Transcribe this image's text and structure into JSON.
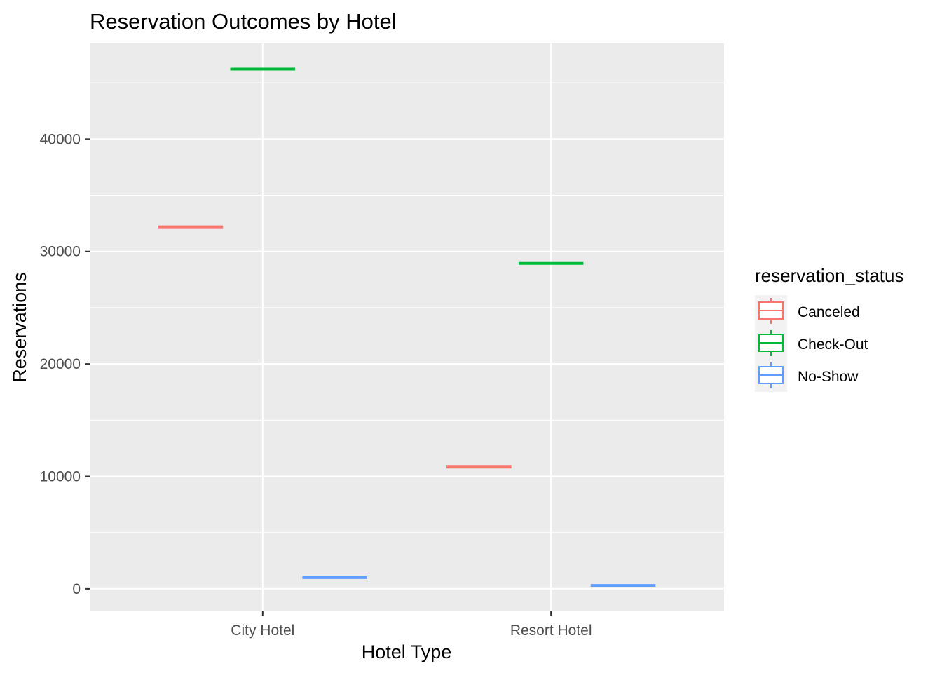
{
  "chart_data": {
    "type": "boxplot",
    "title": "Reservation Outcomes by Hotel",
    "xlabel": "Hotel Type",
    "ylabel": "Reservations",
    "categories": [
      "City Hotel",
      "Resort Hotel"
    ],
    "ylim": [
      -2000,
      48500
    ],
    "y_ticks": [
      0,
      10000,
      20000,
      30000,
      40000
    ],
    "y_tick_labels": [
      "0",
      "10000",
      "20000",
      "30000",
      "40000"
    ],
    "grid": true,
    "legend": {
      "title": "reservation_status",
      "position": "right"
    },
    "series": [
      {
        "name": "Canceled",
        "color": "#F8766D",
        "values": [
          32186,
          10831
        ]
      },
      {
        "name": "Check-Out",
        "color": "#00BA38",
        "values": [
          46228,
          28938
        ]
      },
      {
        "name": "No-Show",
        "color": "#619CFF",
        "values": [
          1000,
          300
        ]
      }
    ]
  }
}
